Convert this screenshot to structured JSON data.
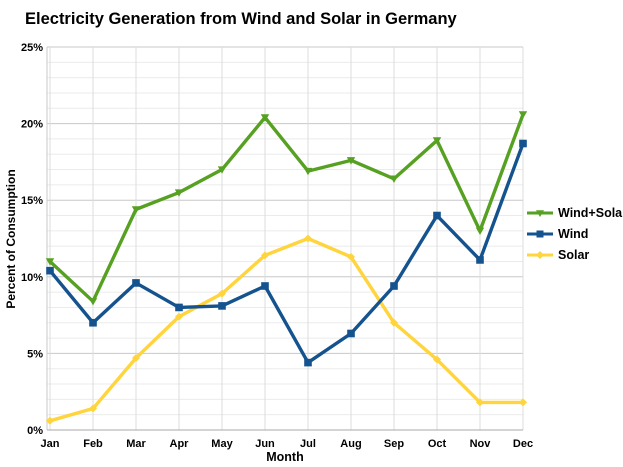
{
  "chart_data": {
    "type": "line",
    "title": "Electricity Generation from Wind and Solar in Germany",
    "xlabel": "Month",
    "ylabel": "Percent of Consumption",
    "x": [
      "Jan",
      "Feb",
      "Mar",
      "Apr",
      "May",
      "Jun",
      "Jul",
      "Aug",
      "Sep",
      "Oct",
      "Nov",
      "Dec"
    ],
    "series": [
      {
        "name": "Wind+Solar",
        "color": "#56A022",
        "marker": "triangle-down",
        "values": [
          11.0,
          8.4,
          14.4,
          15.5,
          17.0,
          20.4,
          16.9,
          17.6,
          16.4,
          18.9,
          13.0,
          20.6
        ]
      },
      {
        "name": "Wind",
        "color": "#15538E",
        "marker": "square",
        "values": [
          10.4,
          7.0,
          9.6,
          8.0,
          8.1,
          9.4,
          4.4,
          6.3,
          9.4,
          14.0,
          11.1,
          18.7
        ]
      },
      {
        "name": "Solar",
        "color": "#FFD43C",
        "marker": "diamond",
        "values": [
          0.6,
          1.4,
          4.7,
          7.4,
          8.9,
          11.4,
          12.5,
          11.3,
          7.0,
          4.6,
          1.8,
          1.8
        ]
      }
    ],
    "ylim": [
      0,
      25
    ],
    "yticks": [
      0,
      5,
      10,
      15,
      20,
      25
    ],
    "ytick_suffix": "%",
    "minor_grid_step": 1,
    "major_grid_step": 5,
    "grid": true,
    "legend_position": "right",
    "colors": {
      "background": "#ffffff",
      "text": "#000000",
      "grid_minor": "#ebebeb",
      "grid_major": "#c8c8c8",
      "grid_vertical": "#dcdcdc",
      "axis": "#a8a8a8"
    }
  }
}
